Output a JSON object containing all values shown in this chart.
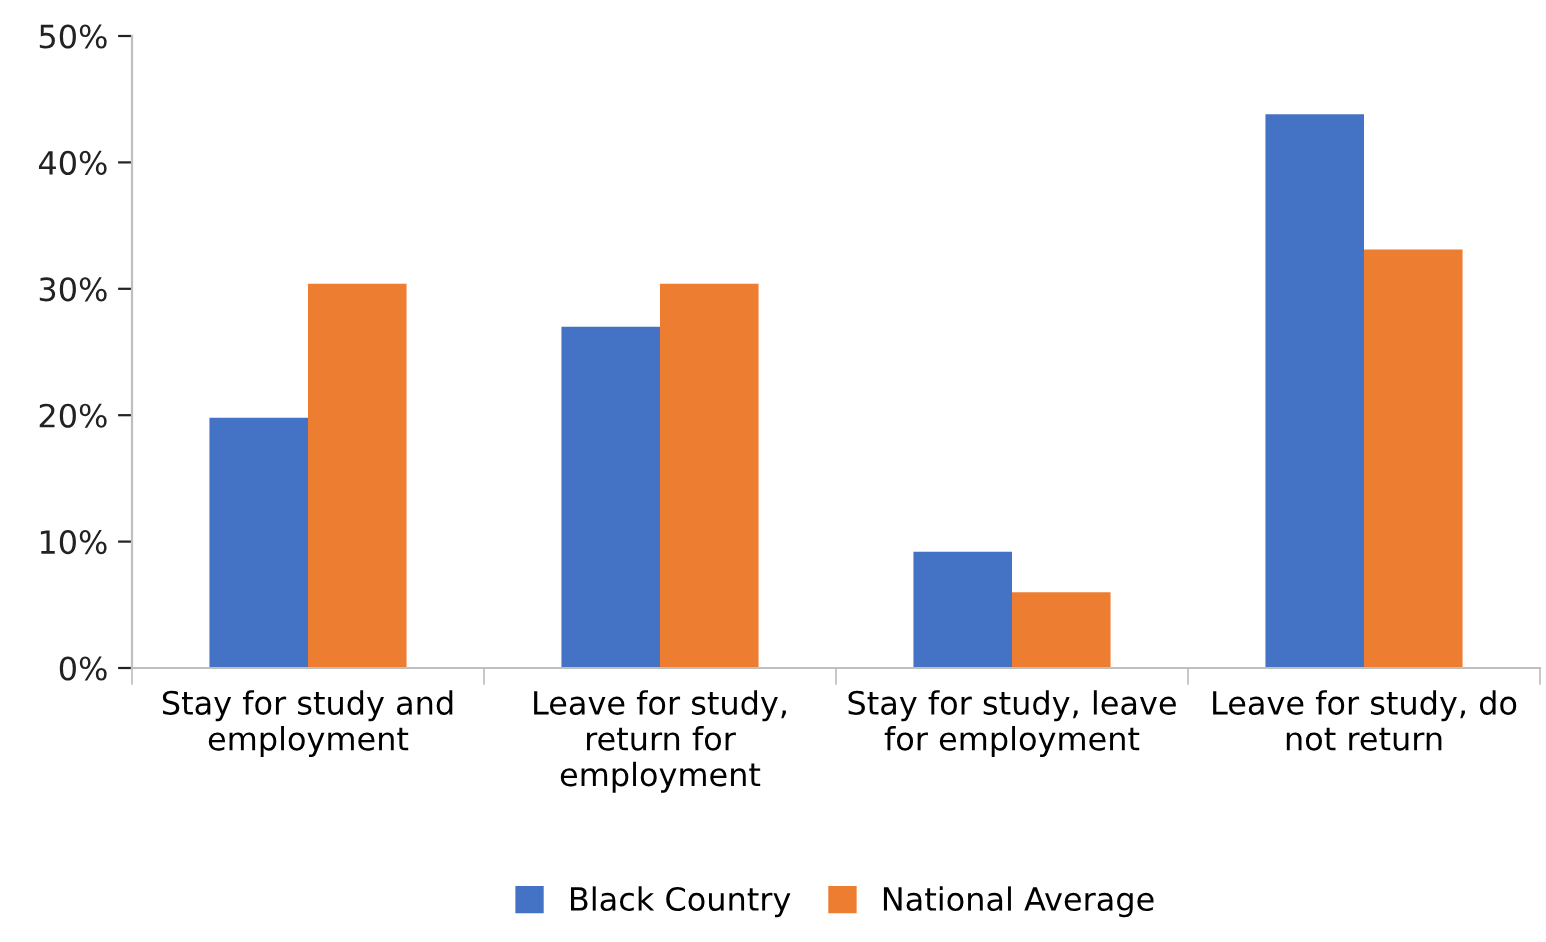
{
  "chart_data": {
    "type": "bar",
    "categories": [
      "Stay for study and employment",
      "Leave for study, return for employment",
      "Stay for study, leave for employment",
      "Leave for study, do not return"
    ],
    "series": [
      {
        "name": "Black Country",
        "color": "#4472c4",
        "values": [
          19.8,
          27,
          9.2,
          43.8
        ]
      },
      {
        "name": "National Average",
        "color": "#ed7d31",
        "values": [
          30.4,
          30.4,
          6.0,
          33.1
        ]
      }
    ],
    "ylim": [
      0,
      50
    ],
    "yticks": [
      {
        "value": 0,
        "label": "0%"
      },
      {
        "value": 10,
        "label": "10%"
      },
      {
        "value": 20,
        "label": "20%"
      },
      {
        "value": 30,
        "label": "30%"
      },
      {
        "value": 40,
        "label": "40%"
      },
      {
        "value": 50,
        "label": "50%"
      }
    ],
    "grid": false,
    "legend": "bottom"
  }
}
